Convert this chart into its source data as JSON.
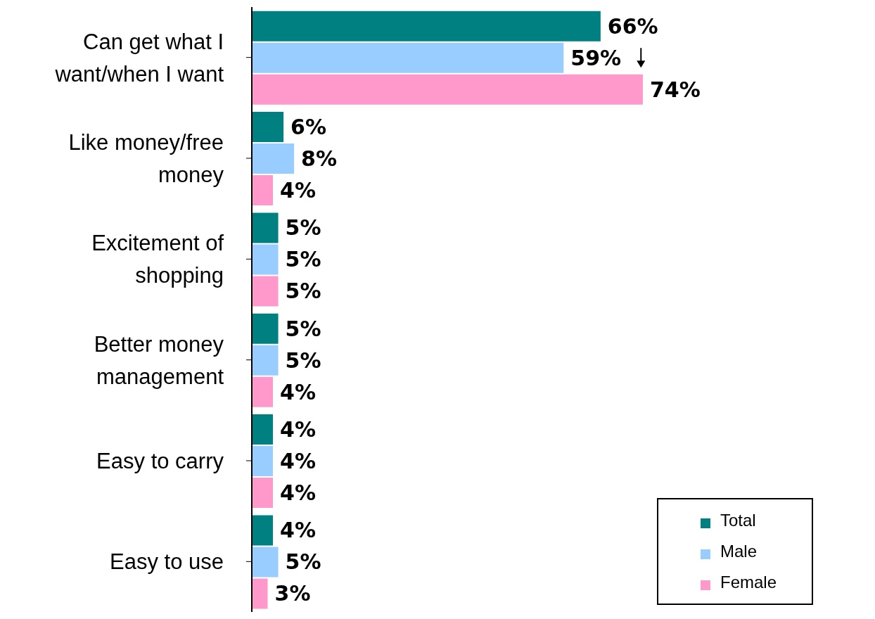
{
  "chart_data": {
    "type": "bar",
    "orientation": "horizontal",
    "categories": [
      "Can get what I want/when I want",
      "Like money/free money",
      "Excitement of shopping",
      "Better money management",
      "Easy to carry",
      "Easy to use"
    ],
    "series": [
      {
        "name": "Total",
        "color": "#008080",
        "values": [
          66,
          6,
          5,
          5,
          4,
          4
        ],
        "value_labels": [
          "66%",
          "6%",
          "5%",
          "5%",
          "4%",
          "4%"
        ]
      },
      {
        "name": "Male",
        "color": "#99ccff",
        "values": [
          59,
          8,
          5,
          5,
          4,
          5
        ],
        "value_labels": [
          "59%",
          "8%",
          "5%",
          "5%",
          "4%",
          "5%"
        ]
      },
      {
        "name": "Female",
        "color": "#ff99cc",
        "values": [
          74,
          4,
          5,
          4,
          4,
          3
        ],
        "value_labels": [
          "74%",
          "4%",
          "5%",
          "4%",
          "4%",
          "3%"
        ]
      }
    ],
    "legend": "bottom right",
    "grid": false
  }
}
